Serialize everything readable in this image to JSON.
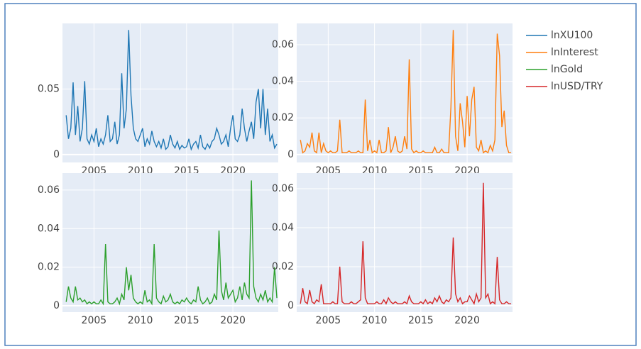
{
  "chart_data": [
    {
      "type": "line",
      "x": [
        2002,
        2002.25,
        2002.5,
        2002.75,
        2003,
        2003.25,
        2003.5,
        2003.75,
        2004,
        2004.25,
        2004.5,
        2004.75,
        2005,
        2005.25,
        2005.5,
        2005.75,
        2006,
        2006.25,
        2006.5,
        2006.75,
        2007,
        2007.25,
        2007.5,
        2007.75,
        2008,
        2008.25,
        2008.5,
        2008.75,
        2009,
        2009.25,
        2009.5,
        2009.75,
        2010,
        2010.25,
        2010.5,
        2010.75,
        2011,
        2011.25,
        2011.5,
        2011.75,
        2012,
        2012.25,
        2012.5,
        2012.75,
        2013,
        2013.25,
        2013.5,
        2013.75,
        2014,
        2014.25,
        2014.5,
        2014.75,
        2015,
        2015.25,
        2015.5,
        2015.75,
        2016,
        2016.25,
        2016.5,
        2016.75,
        2017,
        2017.25,
        2017.5,
        2017.75,
        2018,
        2018.25,
        2018.5,
        2018.75,
        2019,
        2019.25,
        2019.5,
        2019.75,
        2020,
        2020.25,
        2020.5,
        2020.75,
        2021,
        2021.25,
        2021.5,
        2021.75,
        2022,
        2022.25,
        2022.5,
        2022.75,
        2023,
        2023.25,
        2023.5,
        2023.75,
        2024,
        2024.25,
        2024.5,
        2024.75
      ],
      "series": [
        {
          "name": "lnXU100",
          "color": "#1f77b4",
          "values": [
            0.03,
            0.012,
            0.02,
            0.055,
            0.015,
            0.037,
            0.01,
            0.02,
            0.056,
            0.012,
            0.008,
            0.015,
            0.01,
            0.02,
            0.006,
            0.012,
            0.008,
            0.015,
            0.03,
            0.01,
            0.012,
            0.025,
            0.008,
            0.015,
            0.062,
            0.02,
            0.035,
            0.095,
            0.045,
            0.02,
            0.012,
            0.01,
            0.015,
            0.02,
            0.006,
            0.012,
            0.008,
            0.018,
            0.01,
            0.006,
            0.01,
            0.005,
            0.012,
            0.004,
            0.006,
            0.015,
            0.008,
            0.005,
            0.01,
            0.004,
            0.007,
            0.005,
            0.006,
            0.012,
            0.004,
            0.008,
            0.01,
            0.005,
            0.015,
            0.006,
            0.004,
            0.008,
            0.005,
            0.01,
            0.012,
            0.02,
            0.015,
            0.008,
            0.01,
            0.015,
            0.006,
            0.02,
            0.03,
            0.012,
            0.01,
            0.015,
            0.035,
            0.02,
            0.01,
            0.018,
            0.025,
            0.012,
            0.04,
            0.05,
            0.02,
            0.05,
            0.015,
            0.035,
            0.01,
            0.015,
            0.005,
            0.008
          ]
        }
      ],
      "xlim": [
        2001.6,
        2024.9
      ],
      "ylim": [
        -0.006,
        0.1
      ],
      "xticks": [
        2005,
        2010,
        2015,
        2020
      ],
      "yticks": [
        0,
        0.05
      ],
      "grid": true
    },
    {
      "type": "line",
      "x": [
        2002,
        2002.25,
        2002.5,
        2002.75,
        2003,
        2003.25,
        2003.5,
        2003.75,
        2004,
        2004.25,
        2004.5,
        2004.75,
        2005,
        2005.25,
        2005.5,
        2005.75,
        2006,
        2006.25,
        2006.5,
        2006.75,
        2007,
        2007.25,
        2007.5,
        2007.75,
        2008,
        2008.25,
        2008.5,
        2008.75,
        2009,
        2009.25,
        2009.5,
        2009.75,
        2010,
        2010.25,
        2010.5,
        2010.75,
        2011,
        2011.25,
        2011.5,
        2011.75,
        2012,
        2012.25,
        2012.5,
        2012.75,
        2013,
        2013.25,
        2013.5,
        2013.75,
        2014,
        2014.25,
        2014.5,
        2014.75,
        2015,
        2015.25,
        2015.5,
        2015.75,
        2016,
        2016.25,
        2016.5,
        2016.75,
        2017,
        2017.25,
        2017.5,
        2017.75,
        2018,
        2018.25,
        2018.5,
        2018.75,
        2019,
        2019.25,
        2019.5,
        2019.75,
        2020,
        2020.25,
        2020.5,
        2020.75,
        2021,
        2021.25,
        2021.5,
        2021.75,
        2022,
        2022.25,
        2022.5,
        2022.75,
        2023,
        2023.25,
        2023.5,
        2023.75,
        2024,
        2024.25,
        2024.5,
        2024.75
      ],
      "series": [
        {
          "name": "lnInterest",
          "color": "#ff7f0e",
          "values": [
            0.008,
            0.001,
            0.002,
            0.006,
            0.004,
            0.012,
            0.002,
            0.001,
            0.012,
            0.001,
            0.006,
            0.002,
            0.001,
            0.002,
            0.001,
            0.001,
            0.002,
            0.019,
            0.001,
            0.001,
            0.001,
            0.002,
            0.001,
            0.001,
            0.001,
            0.002,
            0.001,
            0.001,
            0.03,
            0.002,
            0.008,
            0.001,
            0.002,
            0.001,
            0.008,
            0.001,
            0.001,
            0.002,
            0.015,
            0.001,
            0.004,
            0.01,
            0.002,
            0.001,
            0.002,
            0.01,
            0.003,
            0.052,
            0.003,
            0.001,
            0.002,
            0.001,
            0.001,
            0.002,
            0.001,
            0.001,
            0.001,
            0.001,
            0.004,
            0.001,
            0.001,
            0.003,
            0.001,
            0.001,
            0.001,
            0.026,
            0.068,
            0.01,
            0.002,
            0.028,
            0.018,
            0.004,
            0.032,
            0.01,
            0.03,
            0.037,
            0.004,
            0.002,
            0.008,
            0.001,
            0.002,
            0.001,
            0.005,
            0.002,
            0.008,
            0.066,
            0.054,
            0.015,
            0.024,
            0.005,
            0.001,
            0.001
          ]
        }
      ],
      "xlim": [
        2001.6,
        2024.9
      ],
      "ylim": [
        -0.0043,
        0.0716
      ],
      "xticks": [
        2005,
        2010,
        2015,
        2020
      ],
      "yticks": [
        0,
        0.02,
        0.04,
        0.06
      ],
      "grid": true
    },
    {
      "type": "line",
      "x": [
        2002,
        2002.25,
        2002.5,
        2002.75,
        2003,
        2003.25,
        2003.5,
        2003.75,
        2004,
        2004.25,
        2004.5,
        2004.75,
        2005,
        2005.25,
        2005.5,
        2005.75,
        2006,
        2006.25,
        2006.5,
        2006.75,
        2007,
        2007.25,
        2007.5,
        2007.75,
        2008,
        2008.25,
        2008.5,
        2008.75,
        2009,
        2009.25,
        2009.5,
        2009.75,
        2010,
        2010.25,
        2010.5,
        2010.75,
        2011,
        2011.25,
        2011.5,
        2011.75,
        2012,
        2012.25,
        2012.5,
        2012.75,
        2013,
        2013.25,
        2013.5,
        2013.75,
        2014,
        2014.25,
        2014.5,
        2014.75,
        2015,
        2015.25,
        2015.5,
        2015.75,
        2016,
        2016.25,
        2016.5,
        2016.75,
        2017,
        2017.25,
        2017.5,
        2017.75,
        2018,
        2018.25,
        2018.5,
        2018.75,
        2019,
        2019.25,
        2019.5,
        2019.75,
        2020,
        2020.25,
        2020.5,
        2020.75,
        2021,
        2021.25,
        2021.5,
        2021.75,
        2022,
        2022.25,
        2022.5,
        2022.75,
        2023,
        2023.25,
        2023.5,
        2023.75,
        2024,
        2024.25,
        2024.5,
        2024.75
      ],
      "series": [
        {
          "name": "lnGold",
          "color": "#2ca02c",
          "values": [
            0.002,
            0.01,
            0.004,
            0.002,
            0.01,
            0.003,
            0.004,
            0.002,
            0.003,
            0.001,
            0.002,
            0.001,
            0.002,
            0.001,
            0.001,
            0.003,
            0.001,
            0.032,
            0.002,
            0.001,
            0.001,
            0.002,
            0.004,
            0.001,
            0.006,
            0.003,
            0.02,
            0.008,
            0.016,
            0.004,
            0.002,
            0.001,
            0.002,
            0.001,
            0.008,
            0.002,
            0.003,
            0.001,
            0.032,
            0.004,
            0.002,
            0.001,
            0.005,
            0.002,
            0.003,
            0.006,
            0.002,
            0.001,
            0.002,
            0.001,
            0.003,
            0.002,
            0.004,
            0.002,
            0.001,
            0.003,
            0.002,
            0.01,
            0.003,
            0.001,
            0.002,
            0.004,
            0.001,
            0.002,
            0.006,
            0.003,
            0.039,
            0.008,
            0.003,
            0.012,
            0.004,
            0.006,
            0.008,
            0.002,
            0.004,
            0.01,
            0.003,
            0.012,
            0.006,
            0.004,
            0.065,
            0.01,
            0.004,
            0.002,
            0.006,
            0.003,
            0.008,
            0.002,
            0.004,
            0.002,
            0.02,
            0.004
          ]
        }
      ],
      "xlim": [
        2001.6,
        2024.9
      ],
      "ylim": [
        -0.0033,
        0.0688
      ],
      "xticks": [
        2005,
        2010,
        2015,
        2020
      ],
      "yticks": [
        0,
        0.02,
        0.04,
        0.06
      ],
      "grid": true
    },
    {
      "type": "line",
      "x": [
        2002,
        2002.25,
        2002.5,
        2002.75,
        2003,
        2003.25,
        2003.5,
        2003.75,
        2004,
        2004.25,
        2004.5,
        2004.75,
        2005,
        2005.25,
        2005.5,
        2005.75,
        2006,
        2006.25,
        2006.5,
        2006.75,
        2007,
        2007.25,
        2007.5,
        2007.75,
        2008,
        2008.25,
        2008.5,
        2008.75,
        2009,
        2009.25,
        2009.5,
        2009.75,
        2010,
        2010.25,
        2010.5,
        2010.75,
        2011,
        2011.25,
        2011.5,
        2011.75,
        2012,
        2012.25,
        2012.5,
        2012.75,
        2013,
        2013.25,
        2013.5,
        2013.75,
        2014,
        2014.25,
        2014.5,
        2014.75,
        2015,
        2015.25,
        2015.5,
        2015.75,
        2016,
        2016.25,
        2016.5,
        2016.75,
        2017,
        2017.25,
        2017.5,
        2017.75,
        2018,
        2018.25,
        2018.5,
        2018.75,
        2019,
        2019.25,
        2019.5,
        2019.75,
        2020,
        2020.25,
        2020.5,
        2020.75,
        2021,
        2021.25,
        2021.5,
        2021.75,
        2022,
        2022.25,
        2022.5,
        2022.75,
        2023,
        2023.25,
        2023.5,
        2023.75,
        2024,
        2024.25,
        2024.5,
        2024.75
      ],
      "series": [
        {
          "name": "lnUSD/TRY",
          "color": "#d62728",
          "values": [
            0.001,
            0.009,
            0.002,
            0.001,
            0.008,
            0.002,
            0.001,
            0.003,
            0.002,
            0.011,
            0.001,
            0.001,
            0.001,
            0.001,
            0.002,
            0.001,
            0.001,
            0.02,
            0.002,
            0.001,
            0.001,
            0.001,
            0.002,
            0.001,
            0.001,
            0.002,
            0.003,
            0.033,
            0.004,
            0.001,
            0.001,
            0.001,
            0.001,
            0.002,
            0.001,
            0.001,
            0.003,
            0.001,
            0.004,
            0.002,
            0.001,
            0.002,
            0.001,
            0.001,
            0.001,
            0.002,
            0.001,
            0.005,
            0.002,
            0.001,
            0.001,
            0.001,
            0.002,
            0.001,
            0.003,
            0.001,
            0.002,
            0.001,
            0.004,
            0.002,
            0.005,
            0.002,
            0.001,
            0.003,
            0.002,
            0.004,
            0.035,
            0.006,
            0.002,
            0.004,
            0.001,
            0.002,
            0.002,
            0.005,
            0.003,
            0.001,
            0.006,
            0.002,
            0.004,
            0.063,
            0.004,
            0.006,
            0.001,
            0.002,
            0.001,
            0.025,
            0.003,
            0.001,
            0.001,
            0.002,
            0.001,
            0.001
          ]
        }
      ],
      "xlim": [
        2001.6,
        2024.9
      ],
      "ylim": [
        -0.0033,
        0.068
      ],
      "xticks": [
        2005,
        2010,
        2015,
        2020
      ],
      "yticks": [
        0,
        0.02,
        0.04,
        0.06
      ],
      "grid": true
    }
  ]
}
